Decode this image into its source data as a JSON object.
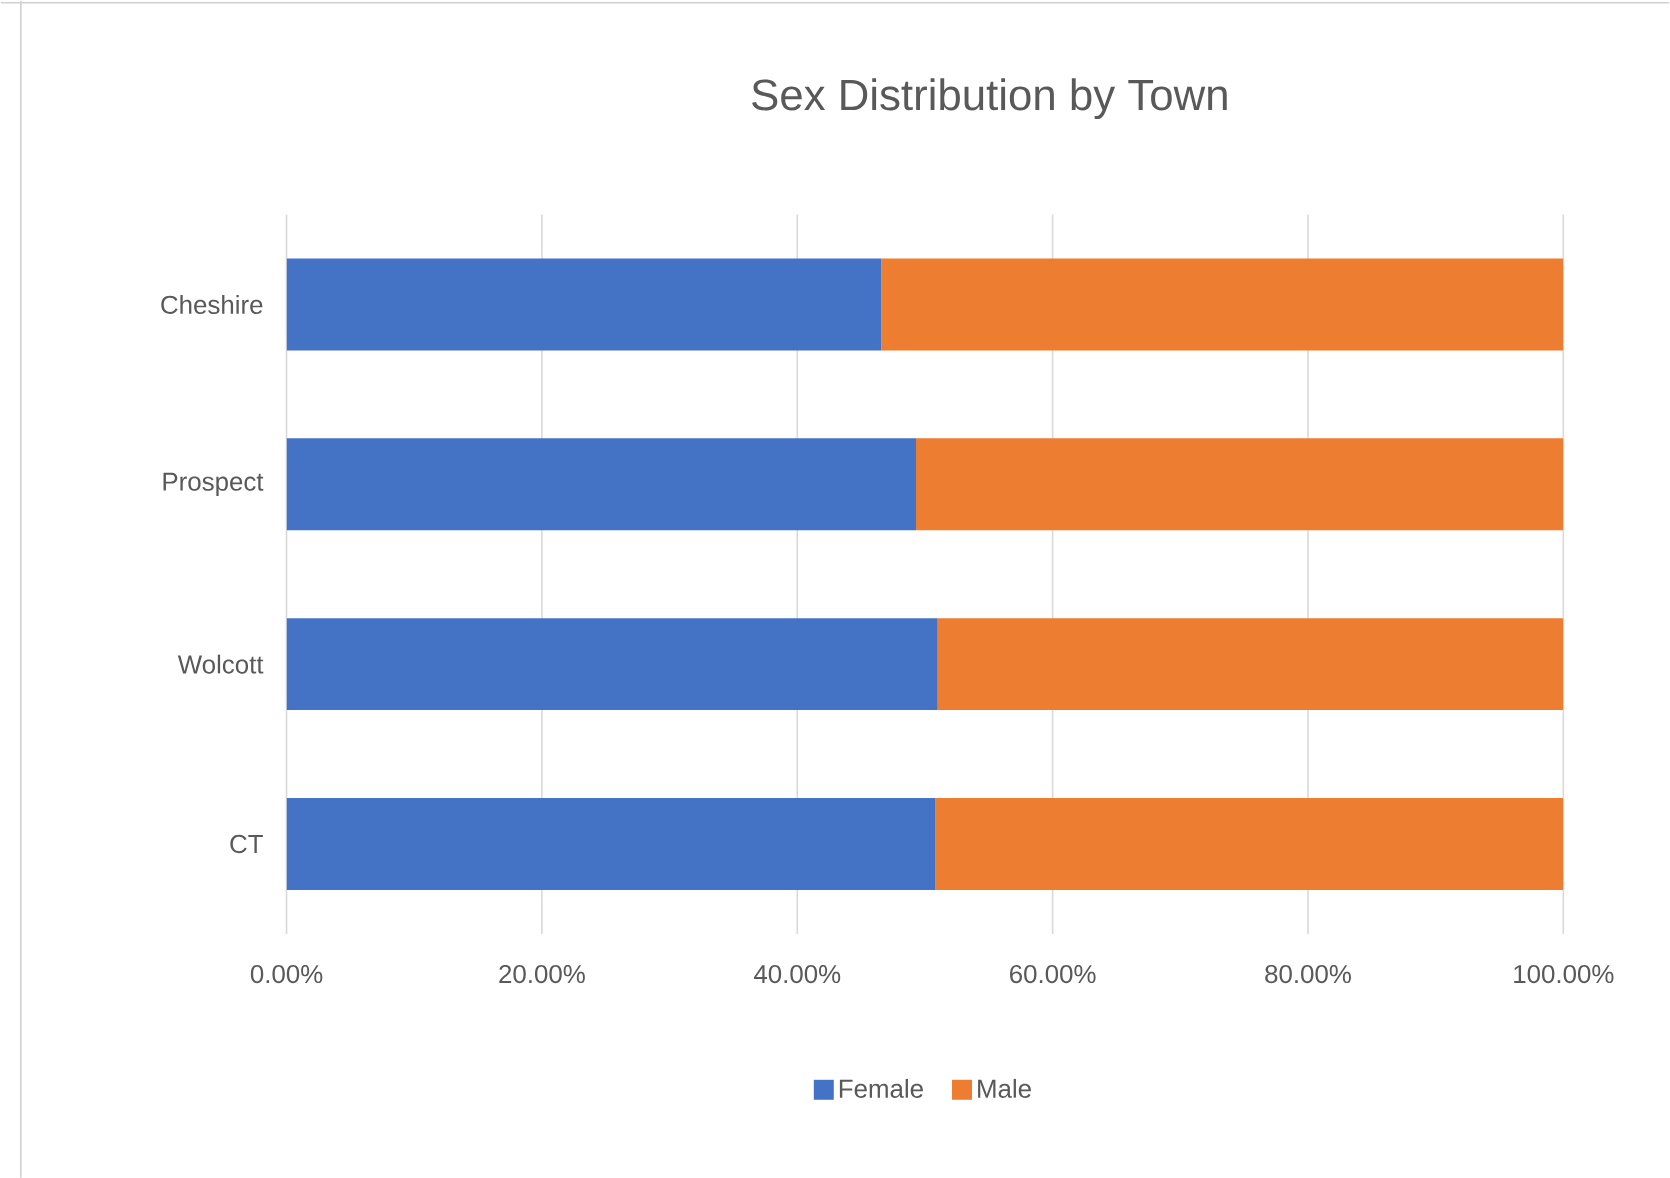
{
  "chart_data": {
    "type": "bar",
    "orientation": "horizontal",
    "stacked": true,
    "title": "Sex Distribution by Town",
    "categories": [
      "Cheshire",
      "Prospect",
      "Wolcott",
      "CT"
    ],
    "series": [
      {
        "name": "Female",
        "color": "#4472c4",
        "values": [
          46.6,
          49.3,
          51.0,
          50.8
        ]
      },
      {
        "name": "Male",
        "color": "#ed7d31",
        "values": [
          53.4,
          50.7,
          49.0,
          49.2
        ]
      }
    ],
    "xlim": [
      0,
      100
    ],
    "xticks": [
      {
        "value": 0,
        "label": "0.00%"
      },
      {
        "value": 20,
        "label": "20.00%"
      },
      {
        "value": 40,
        "label": "40.00%"
      },
      {
        "value": 60,
        "label": "60.00%"
      },
      {
        "value": 80,
        "label": "80.00%"
      },
      {
        "value": 100,
        "label": "100.00%"
      }
    ],
    "grid": "x",
    "legend": "bottom"
  }
}
